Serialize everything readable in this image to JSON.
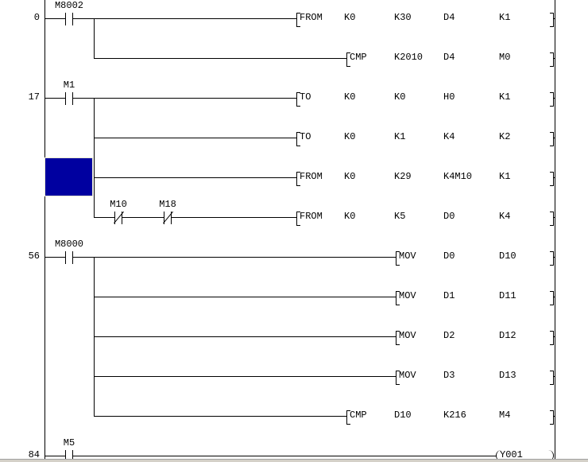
{
  "rows": [
    {
      "step": "0",
      "contacts": [
        {
          "type": "NO",
          "label": "M8002"
        }
      ],
      "instr": {
        "name": "FROM",
        "operands": [
          "K0",
          "K30",
          "D4",
          "K1"
        ]
      }
    },
    {
      "step": "",
      "contacts": [],
      "instr": {
        "name": "CMP",
        "operands": [
          "K2010",
          "D4",
          "M0"
        ]
      }
    },
    {
      "step": "17",
      "contacts": [
        {
          "type": "NO",
          "label": "M1"
        }
      ],
      "instr": {
        "name": "TO",
        "operands": [
          "K0",
          "K0",
          "H0",
          "K1"
        ]
      }
    },
    {
      "step": "",
      "contacts": [],
      "instr": {
        "name": "TO",
        "operands": [
          "K0",
          "K1",
          "K4",
          "K2"
        ]
      }
    },
    {
      "step": "",
      "contacts": [],
      "cursor": true,
      "instr": {
        "name": "FROM",
        "operands": [
          "K0",
          "K29",
          "K4M10",
          "K1"
        ]
      }
    },
    {
      "step": "",
      "contacts": [
        {
          "type": "NC",
          "label": "M10"
        },
        {
          "type": "NC",
          "label": "M18"
        }
      ],
      "instr": {
        "name": "FROM",
        "operands": [
          "K0",
          "K5",
          "D0",
          "K4"
        ]
      }
    },
    {
      "step": "56",
      "contacts": [
        {
          "type": "NO",
          "label": "M8000"
        }
      ],
      "instr": {
        "name": "MOV",
        "operands": [
          "D0",
          "D10"
        ]
      }
    },
    {
      "step": "",
      "contacts": [],
      "instr": {
        "name": "MOV",
        "operands": [
          "D1",
          "D11"
        ]
      }
    },
    {
      "step": "",
      "contacts": [],
      "instr": {
        "name": "MOV",
        "operands": [
          "D2",
          "D12"
        ]
      }
    },
    {
      "step": "",
      "contacts": [],
      "instr": {
        "name": "MOV",
        "operands": [
          "D3",
          "D13"
        ]
      }
    },
    {
      "step": "",
      "contacts": [],
      "instr": {
        "name": "CMP",
        "operands": [
          "D10",
          "K216",
          "M4"
        ]
      }
    },
    {
      "step": "84",
      "contacts": [
        {
          "type": "NO",
          "label": "M5"
        }
      ],
      "coil": "Y001"
    }
  ],
  "cursor_color": "#0000a0"
}
